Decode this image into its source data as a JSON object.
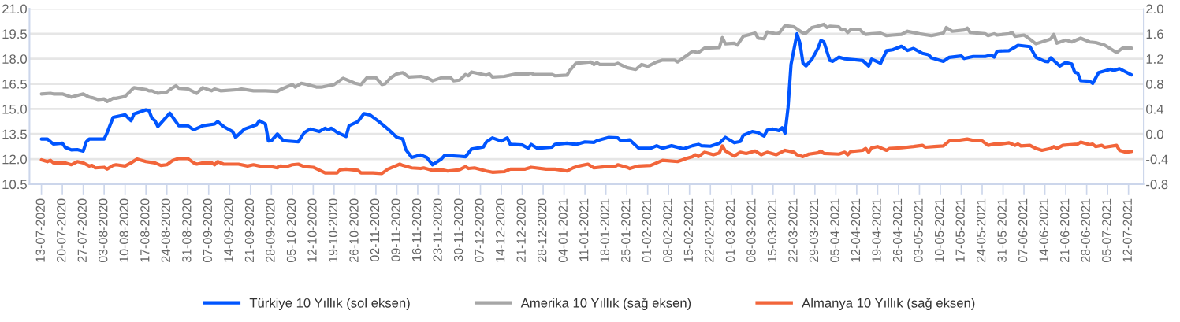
{
  "chart_data": {
    "type": "line",
    "xlim": [
      "2020-07-09",
      "2021-07-17"
    ],
    "xticks": [
      {
        "value": "2020-07-13",
        "label": "13-07-2020"
      },
      {
        "value": "2020-07-20",
        "label": "20-07-2020"
      },
      {
        "value": "2020-07-27",
        "label": "27-07-2020"
      },
      {
        "value": "2020-08-03",
        "label": "03-08-2020"
      },
      {
        "value": "2020-08-10",
        "label": "10-08-2020"
      },
      {
        "value": "2020-08-17",
        "label": "17-08-2020"
      },
      {
        "value": "2020-08-24",
        "label": "24-08-2020"
      },
      {
        "value": "2020-08-31",
        "label": "31-08-2020"
      },
      {
        "value": "2020-09-07",
        "label": "07-09-2020"
      },
      {
        "value": "2020-09-14",
        "label": "14-09-2020"
      },
      {
        "value": "2020-09-21",
        "label": "21-09-2020"
      },
      {
        "value": "2020-09-28",
        "label": "28-09-2020"
      },
      {
        "value": "2020-10-05",
        "label": "05-10-2020"
      },
      {
        "value": "2020-10-12",
        "label": "12-10-2020"
      },
      {
        "value": "2020-10-19",
        "label": "19-10-2020"
      },
      {
        "value": "2020-10-26",
        "label": "26-10-2020"
      },
      {
        "value": "2020-11-02",
        "label": "02-11-2020"
      },
      {
        "value": "2020-11-09",
        "label": "09-11-2020"
      },
      {
        "value": "2020-11-16",
        "label": "16-11-2020"
      },
      {
        "value": "2020-11-23",
        "label": "23-11-2020"
      },
      {
        "value": "2020-11-30",
        "label": "30-11-2020"
      },
      {
        "value": "2020-12-07",
        "label": "07-12-2020"
      },
      {
        "value": "2020-12-14",
        "label": "14-12-2020"
      },
      {
        "value": "2020-12-21",
        "label": "21-12-2020"
      },
      {
        "value": "2020-12-28",
        "label": "28-12-2020"
      },
      {
        "value": "2021-01-04",
        "label": "04-01-2021"
      },
      {
        "value": "2021-01-11",
        "label": "11-01-2021"
      },
      {
        "value": "2021-01-18",
        "label": "18-01-2021"
      },
      {
        "value": "2021-01-25",
        "label": "25-01-2021"
      },
      {
        "value": "2021-02-01",
        "label": "01-02-2021"
      },
      {
        "value": "2021-02-08",
        "label": "08-02-2021"
      },
      {
        "value": "2021-02-15",
        "label": "15-02-2021"
      },
      {
        "value": "2021-02-22",
        "label": "22-02-2021"
      },
      {
        "value": "2021-03-01",
        "label": "01-03-2021"
      },
      {
        "value": "2021-03-08",
        "label": "08-03-2021"
      },
      {
        "value": "2021-03-15",
        "label": "15-03-2021"
      },
      {
        "value": "2021-03-22",
        "label": "22-03-2021"
      },
      {
        "value": "2021-03-29",
        "label": "29-03-2021"
      },
      {
        "value": "2021-04-05",
        "label": "05-04-2021"
      },
      {
        "value": "2021-04-12",
        "label": "12-04-2021"
      },
      {
        "value": "2021-04-19",
        "label": "19-04-2021"
      },
      {
        "value": "2021-04-26",
        "label": "26-04-2021"
      },
      {
        "value": "2021-05-03",
        "label": "03-05-2021"
      },
      {
        "value": "2021-05-10",
        "label": "10-05-2021"
      },
      {
        "value": "2021-05-17",
        "label": "17-05-2021"
      },
      {
        "value": "2021-05-24",
        "label": "24-05-2021"
      },
      {
        "value": "2021-05-31",
        "label": "31-05-2021"
      },
      {
        "value": "2021-06-07",
        "label": "07-06-2021"
      },
      {
        "value": "2021-06-14",
        "label": "14-06-2021"
      },
      {
        "value": "2021-06-21",
        "label": "21-06-2021"
      },
      {
        "value": "2021-06-28",
        "label": "28-06-2021"
      },
      {
        "value": "2021-07-05",
        "label": "05-07-2021"
      },
      {
        "value": "2021-07-12",
        "label": "12-07-2021"
      }
    ],
    "ylim": [
      10.5,
      21.0
    ],
    "yticks": [
      {
        "value": 10.5,
        "label": "10.5"
      },
      {
        "value": 12.0,
        "label": "12.0"
      },
      {
        "value": 13.5,
        "label": "13.5"
      },
      {
        "value": 15.0,
        "label": "15.0"
      },
      {
        "value": 16.5,
        "label": "16.5"
      },
      {
        "value": 18.0,
        "label": "18.0"
      },
      {
        "value": 19.5,
        "label": "19.5"
      },
      {
        "value": 21.0,
        "label": "21.0"
      }
    ],
    "y2lim": [
      -0.8,
      2.0
    ],
    "y2ticks": [
      {
        "value": -0.8,
        "label": "-0.8"
      },
      {
        "value": -0.4,
        "label": "-0.4"
      },
      {
        "value": 0.0,
        "label": "0.0"
      },
      {
        "value": 0.4,
        "label": "0.4"
      },
      {
        "value": 0.8,
        "label": "0.8"
      },
      {
        "value": 1.2,
        "label": "1.2"
      },
      {
        "value": 1.6,
        "label": "1.6"
      },
      {
        "value": 2.0,
        "label": "2.0"
      }
    ],
    "grid": "y",
    "legend": "bottom",
    "line_style": "solid",
    "series": [
      {
        "name": "Türkiye 10 Yıllık (sol eksen)",
        "color": "#0055ff",
        "x": [
          "2020-07-13",
          "2020-07-15",
          "2020-07-17",
          "2020-07-20",
          "2020-07-21",
          "2020-07-23",
          "2020-07-25",
          "2020-07-27",
          "2020-07-28",
          "2020-07-29",
          "2020-08-03",
          "2020-08-04",
          "2020-08-06",
          "2020-08-10",
          "2020-08-12",
          "2020-08-13",
          "2020-08-17",
          "2020-08-18",
          "2020-08-19",
          "2020-08-20",
          "2020-08-21",
          "2020-08-25",
          "2020-08-28",
          "2020-08-31",
          "2020-09-02",
          "2020-09-05",
          "2020-09-09",
          "2020-09-10",
          "2020-09-12",
          "2020-09-15",
          "2020-09-16",
          "2020-09-19",
          "2020-09-23",
          "2020-09-24",
          "2020-09-26",
          "2020-09-27",
          "2020-09-28",
          "2020-09-30",
          "2020-10-02",
          "2020-10-07",
          "2020-10-09",
          "2020-10-11",
          "2020-10-14",
          "2020-10-16",
          "2020-10-17",
          "2020-10-18",
          "2020-10-20",
          "2020-10-23",
          "2020-10-24",
          "2020-10-27",
          "2020-10-29",
          "2020-10-31",
          "2020-11-03",
          "2020-11-06",
          "2020-11-09",
          "2020-11-11",
          "2020-11-12",
          "2020-11-14",
          "2020-11-17",
          "2020-11-19",
          "2020-11-21",
          "2020-11-24",
          "2020-11-25",
          "2020-11-30",
          "2020-12-02",
          "2020-12-04",
          "2020-12-08",
          "2020-12-09",
          "2020-12-11",
          "2020-12-14",
          "2020-12-16",
          "2020-12-17",
          "2020-12-21",
          "2020-12-23",
          "2020-12-24",
          "2020-12-26",
          "2020-12-31",
          "2021-01-01",
          "2021-01-05",
          "2021-01-08",
          "2021-01-11",
          "2021-01-14",
          "2021-01-15",
          "2021-01-19",
          "2021-01-22",
          "2021-01-23",
          "2021-01-26",
          "2021-01-29",
          "2021-02-02",
          "2021-02-04",
          "2021-02-06",
          "2021-02-09",
          "2021-02-13",
          "2021-02-16",
          "2021-02-18",
          "2021-02-19",
          "2021-02-22",
          "2021-02-25",
          "2021-02-27",
          "2021-03-02",
          "2021-03-04",
          "2021-03-05",
          "2021-03-08",
          "2021-03-10",
          "2021-03-12",
          "2021-03-13",
          "2021-03-15",
          "2021-03-17",
          "2021-03-18",
          "2021-03-19",
          "2021-03-20",
          "2021-03-21",
          "2021-03-23",
          "2021-03-24",
          "2021-03-25",
          "2021-03-26",
          "2021-03-28",
          "2021-03-30",
          "2021-03-31",
          "2021-04-01",
          "2021-04-03",
          "2021-04-04",
          "2021-04-06",
          "2021-04-08",
          "2021-04-14",
          "2021-04-16",
          "2021-04-17",
          "2021-04-20",
          "2021-04-22",
          "2021-04-24",
          "2021-04-27",
          "2021-04-29",
          "2021-05-01",
          "2021-05-04",
          "2021-05-06",
          "2021-05-07",
          "2021-05-11",
          "2021-05-13",
          "2021-05-17",
          "2021-05-18",
          "2021-05-21",
          "2021-05-25",
          "2021-05-27",
          "2021-05-28",
          "2021-05-29",
          "2021-06-02",
          "2021-06-04",
          "2021-06-05",
          "2021-06-09",
          "2021-06-11",
          "2021-06-14",
          "2021-06-15",
          "2021-06-16",
          "2021-06-19",
          "2021-06-21",
          "2021-06-23",
          "2021-06-24",
          "2021-06-25",
          "2021-06-26",
          "2021-06-29",
          "2021-06-30",
          "2021-07-02",
          "2021-07-06",
          "2021-07-07",
          "2021-07-09",
          "2021-07-13"
        ],
        "values": [
          13.2,
          13.2,
          12.9,
          12.95,
          12.7,
          12.55,
          12.57,
          12.48,
          13.03,
          13.2,
          13.2,
          13.58,
          14.5,
          14.65,
          14.3,
          14.7,
          14.95,
          14.9,
          14.45,
          14.3,
          13.95,
          14.75,
          14.0,
          14.0,
          13.75,
          14.0,
          14.1,
          14.25,
          13.95,
          13.65,
          13.3,
          13.8,
          14.05,
          14.3,
          14.1,
          13.08,
          13.1,
          13.5,
          13.1,
          13.03,
          13.58,
          13.8,
          13.65,
          13.85,
          13.75,
          13.85,
          13.6,
          13.35,
          14.0,
          14.25,
          14.72,
          14.65,
          14.25,
          13.8,
          13.3,
          13.2,
          12.57,
          12.1,
          12.25,
          12.1,
          11.66,
          12.02,
          12.22,
          12.17,
          12.14,
          12.6,
          12.72,
          13.03,
          13.27,
          13.08,
          13.27,
          12.88,
          12.85,
          12.65,
          12.88,
          12.65,
          12.72,
          12.88,
          12.95,
          12.88,
          13.03,
          13.0,
          13.1,
          13.3,
          13.27,
          13.1,
          13.15,
          12.65,
          12.65,
          12.8,
          12.65,
          12.8,
          12.62,
          12.8,
          12.88,
          12.8,
          12.77,
          12.95,
          13.3,
          12.98,
          13.05,
          13.42,
          13.65,
          13.58,
          13.38,
          13.73,
          13.8,
          13.7,
          13.88,
          13.55,
          15.08,
          17.66,
          19.5,
          18.94,
          17.74,
          17.57,
          17.98,
          18.62,
          19.1,
          19.02,
          17.9,
          17.85,
          18.1,
          18.0,
          17.9,
          17.57,
          17.98,
          17.74,
          18.49,
          18.54,
          18.75,
          18.5,
          18.62,
          18.33,
          18.25,
          18.06,
          17.85,
          18.09,
          18.17,
          18.02,
          18.14,
          18.14,
          18.22,
          18.1,
          18.46,
          18.49,
          18.7,
          18.81,
          18.73,
          18.09,
          17.85,
          17.82,
          18.06,
          17.57,
          17.78,
          17.69,
          17.2,
          17.14,
          16.69,
          16.66,
          16.53,
          17.17,
          17.38,
          17.3,
          17.41,
          17.04
        ]
      },
      {
        "name": "Amerika 10 Yıllık (sağ eksen)",
        "color": "#a6a6a6",
        "axis": "y2",
        "x": [
          "2020-07-13",
          "2020-07-16",
          "2020-07-17",
          "2020-07-20",
          "2020-07-23",
          "2020-07-27",
          "2020-07-29",
          "2020-07-30",
          "2020-08-01",
          "2020-08-03",
          "2020-08-04",
          "2020-08-06",
          "2020-08-07",
          "2020-08-10",
          "2020-08-13",
          "2020-08-17",
          "2020-08-18",
          "2020-08-19",
          "2020-08-21",
          "2020-08-24",
          "2020-08-25",
          "2020-08-27",
          "2020-08-28",
          "2020-08-31",
          "2020-09-03",
          "2020-09-05",
          "2020-09-08",
          "2020-09-09",
          "2020-09-11",
          "2020-09-17",
          "2020-09-18",
          "2020-09-22",
          "2020-09-26",
          "2020-09-30",
          "2020-10-01",
          "2020-10-05",
          "2020-10-06",
          "2020-10-08",
          "2020-10-10",
          "2020-10-13",
          "2020-10-15",
          "2020-10-19",
          "2020-10-22",
          "2020-10-26",
          "2020-10-28",
          "2020-10-30",
          "2020-11-02",
          "2020-11-04",
          "2020-11-05",
          "2020-11-07",
          "2020-11-09",
          "2020-11-11",
          "2020-11-13",
          "2020-11-17",
          "2020-11-19",
          "2020-11-21",
          "2020-11-24",
          "2020-11-27",
          "2020-11-28",
          "2020-11-30",
          "2020-12-02",
          "2020-12-03",
          "2020-12-04",
          "2020-12-09",
          "2020-12-10",
          "2020-12-11",
          "2020-12-15",
          "2020-12-19",
          "2020-12-23",
          "2020-12-24",
          "2020-12-25",
          "2020-12-31",
          "2021-01-01",
          "2021-01-05",
          "2021-01-06",
          "2021-01-08",
          "2021-01-13",
          "2021-01-14",
          "2021-01-15",
          "2021-01-16",
          "2021-01-21",
          "2021-01-22",
          "2021-01-25",
          "2021-01-28",
          "2021-01-30",
          "2021-02-01",
          "2021-02-04",
          "2021-02-06",
          "2021-02-10",
          "2021-02-11",
          "2021-02-14",
          "2021-02-16",
          "2021-02-18",
          "2021-02-20",
          "2021-02-25",
          "2021-02-26",
          "2021-02-27",
          "2021-03-02",
          "2021-03-03",
          "2021-03-05",
          "2021-03-09",
          "2021-03-10",
          "2021-03-12",
          "2021-03-13",
          "2021-03-16",
          "2021-03-17",
          "2021-03-19",
          "2021-03-22",
          "2021-03-25",
          "2021-03-26",
          "2021-03-28",
          "2021-03-30",
          "2021-04-01",
          "2021-04-02",
          "2021-04-03",
          "2021-04-06",
          "2021-04-07",
          "2021-04-08",
          "2021-04-09",
          "2021-04-10",
          "2021-04-13",
          "2021-04-14",
          "2021-04-15",
          "2021-04-17",
          "2021-04-20",
          "2021-04-22",
          "2021-04-24",
          "2021-04-27",
          "2021-04-29",
          "2021-05-03",
          "2021-05-07",
          "2021-05-11",
          "2021-05-12",
          "2021-05-14",
          "2021-05-18",
          "2021-05-19",
          "2021-05-20",
          "2021-05-25",
          "2021-05-26",
          "2021-05-28",
          "2021-05-29",
          "2021-06-02",
          "2021-06-03",
          "2021-06-04",
          "2021-06-07",
          "2021-06-08",
          "2021-06-11",
          "2021-06-15",
          "2021-06-16",
          "2021-06-17",
          "2021-06-18",
          "2021-06-21",
          "2021-06-23",
          "2021-06-26",
          "2021-06-29",
          "2021-07-01",
          "2021-07-04",
          "2021-07-08",
          "2021-07-10",
          "2021-07-13"
        ],
        "values": [
          0.64,
          0.65,
          0.64,
          0.64,
          0.59,
          0.64,
          0.59,
          0.58,
          0.55,
          0.56,
          0.52,
          0.57,
          0.57,
          0.6,
          0.74,
          0.71,
          0.69,
          0.69,
          0.65,
          0.67,
          0.71,
          0.77,
          0.73,
          0.72,
          0.65,
          0.74,
          0.69,
          0.72,
          0.69,
          0.71,
          0.72,
          0.69,
          0.69,
          0.68,
          0.71,
          0.79,
          0.75,
          0.81,
          0.79,
          0.75,
          0.75,
          0.79,
          0.89,
          0.81,
          0.79,
          0.9,
          0.9,
          0.79,
          0.8,
          0.9,
          0.96,
          0.98,
          0.91,
          0.92,
          0.9,
          0.85,
          0.9,
          0.9,
          0.85,
          0.86,
          0.95,
          0.93,
          0.99,
          0.94,
          0.96,
          0.91,
          0.92,
          0.96,
          0.96,
          0.97,
          0.95,
          0.95,
          0.93,
          0.94,
          1.02,
          1.13,
          1.15,
          1.11,
          1.14,
          1.11,
          1.11,
          1.13,
          1.06,
          1.03,
          1.11,
          1.08,
          1.15,
          1.18,
          1.18,
          1.15,
          1.25,
          1.32,
          1.3,
          1.37,
          1.38,
          1.54,
          1.44,
          1.45,
          1.42,
          1.56,
          1.61,
          1.53,
          1.52,
          1.63,
          1.6,
          1.61,
          1.73,
          1.71,
          1.61,
          1.61,
          1.7,
          1.72,
          1.75,
          1.7,
          1.72,
          1.71,
          1.66,
          1.67,
          1.62,
          1.67,
          1.67,
          1.62,
          1.59,
          1.6,
          1.61,
          1.57,
          1.58,
          1.59,
          1.64,
          1.6,
          1.57,
          1.61,
          1.7,
          1.64,
          1.66,
          1.69,
          1.62,
          1.6,
          1.57,
          1.6,
          1.58,
          1.6,
          1.62,
          1.56,
          1.58,
          1.55,
          1.44,
          1.5,
          1.52,
          1.59,
          1.45,
          1.5,
          1.47,
          1.53,
          1.47,
          1.46,
          1.42,
          1.3,
          1.37,
          1.37
        ]
      },
      {
        "name": "Almanya 10 Yıllık (sağ eksen)",
        "color": "#f2653a",
        "axis": "y2",
        "x": [
          "2020-07-13",
          "2020-07-15",
          "2020-07-16",
          "2020-07-17",
          "2020-07-21",
          "2020-07-23",
          "2020-07-25",
          "2020-07-27",
          "2020-07-29",
          "2020-07-30",
          "2020-07-31",
          "2020-08-03",
          "2020-08-04",
          "2020-08-06",
          "2020-08-07",
          "2020-08-10",
          "2020-08-12",
          "2020-08-14",
          "2020-08-17",
          "2020-08-20",
          "2020-08-22",
          "2020-08-24",
          "2020-08-26",
          "2020-08-28",
          "2020-08-31",
          "2020-09-02",
          "2020-09-03",
          "2020-09-05",
          "2020-09-08",
          "2020-09-09",
          "2020-09-10",
          "2020-09-12",
          "2020-09-17",
          "2020-09-20",
          "2020-09-22",
          "2020-09-25",
          "2020-09-28",
          "2020-09-30",
          "2020-10-01",
          "2020-10-03",
          "2020-10-05",
          "2020-10-07",
          "2020-10-09",
          "2020-10-12",
          "2020-10-16",
          "2020-10-20",
          "2020-10-21",
          "2020-10-23",
          "2020-10-27",
          "2020-10-28",
          "2020-11-01",
          "2020-11-04",
          "2020-11-06",
          "2020-11-10",
          "2020-11-11",
          "2020-11-14",
          "2020-11-17",
          "2020-11-18",
          "2020-11-21",
          "2020-11-24",
          "2020-11-26",
          "2020-11-30",
          "2020-12-02",
          "2020-12-03",
          "2020-12-05",
          "2020-12-09",
          "2020-12-11",
          "2020-12-15",
          "2020-12-17",
          "2020-12-22",
          "2020-12-24",
          "2020-12-29",
          "2021-01-01",
          "2021-01-05",
          "2021-01-07",
          "2021-01-09",
          "2021-01-12",
          "2021-01-14",
          "2021-01-18",
          "2021-01-21",
          "2021-01-22",
          "2021-01-25",
          "2021-01-26",
          "2021-01-28",
          "2021-01-29",
          "2021-02-02",
          "2021-02-04",
          "2021-02-06",
          "2021-02-11",
          "2021-02-14",
          "2021-02-16",
          "2021-02-17",
          "2021-02-18",
          "2021-02-20",
          "2021-02-23",
          "2021-02-25",
          "2021-02-26",
          "2021-02-27",
          "2021-03-02",
          "2021-03-04",
          "2021-03-06",
          "2021-03-09",
          "2021-03-11",
          "2021-03-13",
          "2021-03-16",
          "2021-03-19",
          "2021-03-22",
          "2021-03-23",
          "2021-03-25",
          "2021-03-27",
          "2021-03-30",
          "2021-03-31",
          "2021-04-01",
          "2021-04-06",
          "2021-04-08",
          "2021-04-09",
          "2021-04-10",
          "2021-04-14",
          "2021-04-15",
          "2021-04-16",
          "2021-04-17",
          "2021-04-19",
          "2021-04-22",
          "2021-04-23",
          "2021-04-27",
          "2021-05-01",
          "2021-05-04",
          "2021-05-05",
          "2021-05-08",
          "2021-05-11",
          "2021-05-13",
          "2021-05-16",
          "2021-05-19",
          "2021-05-21",
          "2021-05-24",
          "2021-05-26",
          "2021-05-28",
          "2021-05-30",
          "2021-06-02",
          "2021-06-04",
          "2021-06-05",
          "2021-06-06",
          "2021-06-09",
          "2021-06-11",
          "2021-06-13",
          "2021-06-16",
          "2021-06-17",
          "2021-06-18",
          "2021-06-20",
          "2021-06-25",
          "2021-06-26",
          "2021-06-29",
          "2021-06-30",
          "2021-07-01",
          "2021-07-03",
          "2021-07-04",
          "2021-07-08",
          "2021-07-09",
          "2021-07-11",
          "2021-07-13"
        ],
        "values": [
          -0.41,
          -0.44,
          -0.42,
          -0.46,
          -0.46,
          -0.49,
          -0.44,
          -0.46,
          -0.51,
          -0.5,
          -0.54,
          -0.53,
          -0.56,
          -0.5,
          -0.49,
          -0.51,
          -0.46,
          -0.4,
          -0.44,
          -0.46,
          -0.5,
          -0.49,
          -0.42,
          -0.39,
          -0.39,
          -0.46,
          -0.48,
          -0.46,
          -0.46,
          -0.49,
          -0.44,
          -0.48,
          -0.48,
          -0.51,
          -0.49,
          -0.52,
          -0.52,
          -0.54,
          -0.51,
          -0.52,
          -0.49,
          -0.48,
          -0.52,
          -0.53,
          -0.62,
          -0.62,
          -0.57,
          -0.56,
          -0.58,
          -0.62,
          -0.62,
          -0.63,
          -0.56,
          -0.48,
          -0.5,
          -0.54,
          -0.55,
          -0.54,
          -0.58,
          -0.57,
          -0.59,
          -0.57,
          -0.52,
          -0.55,
          -0.54,
          -0.59,
          -0.61,
          -0.6,
          -0.56,
          -0.56,
          -0.53,
          -0.56,
          -0.56,
          -0.59,
          -0.54,
          -0.51,
          -0.48,
          -0.54,
          -0.52,
          -0.52,
          -0.49,
          -0.53,
          -0.55,
          -0.52,
          -0.51,
          -0.5,
          -0.46,
          -0.42,
          -0.44,
          -0.39,
          -0.36,
          -0.33,
          -0.36,
          -0.29,
          -0.33,
          -0.3,
          -0.19,
          -0.27,
          -0.35,
          -0.29,
          -0.31,
          -0.27,
          -0.33,
          -0.29,
          -0.33,
          -0.26,
          -0.29,
          -0.33,
          -0.36,
          -0.32,
          -0.3,
          -0.27,
          -0.31,
          -0.32,
          -0.29,
          -0.33,
          -0.28,
          -0.26,
          -0.23,
          -0.29,
          -0.22,
          -0.2,
          -0.26,
          -0.23,
          -0.22,
          -0.2,
          -0.18,
          -0.21,
          -0.2,
          -0.19,
          -0.11,
          -0.1,
          -0.08,
          -0.1,
          -0.11,
          -0.18,
          -0.16,
          -0.16,
          -0.14,
          -0.18,
          -0.16,
          -0.19,
          -0.18,
          -0.23,
          -0.26,
          -0.23,
          -0.2,
          -0.23,
          -0.18,
          -0.16,
          -0.13,
          -0.17,
          -0.16,
          -0.2,
          -0.18,
          -0.21,
          -0.18,
          -0.26,
          -0.29,
          -0.28
        ]
      }
    ]
  }
}
